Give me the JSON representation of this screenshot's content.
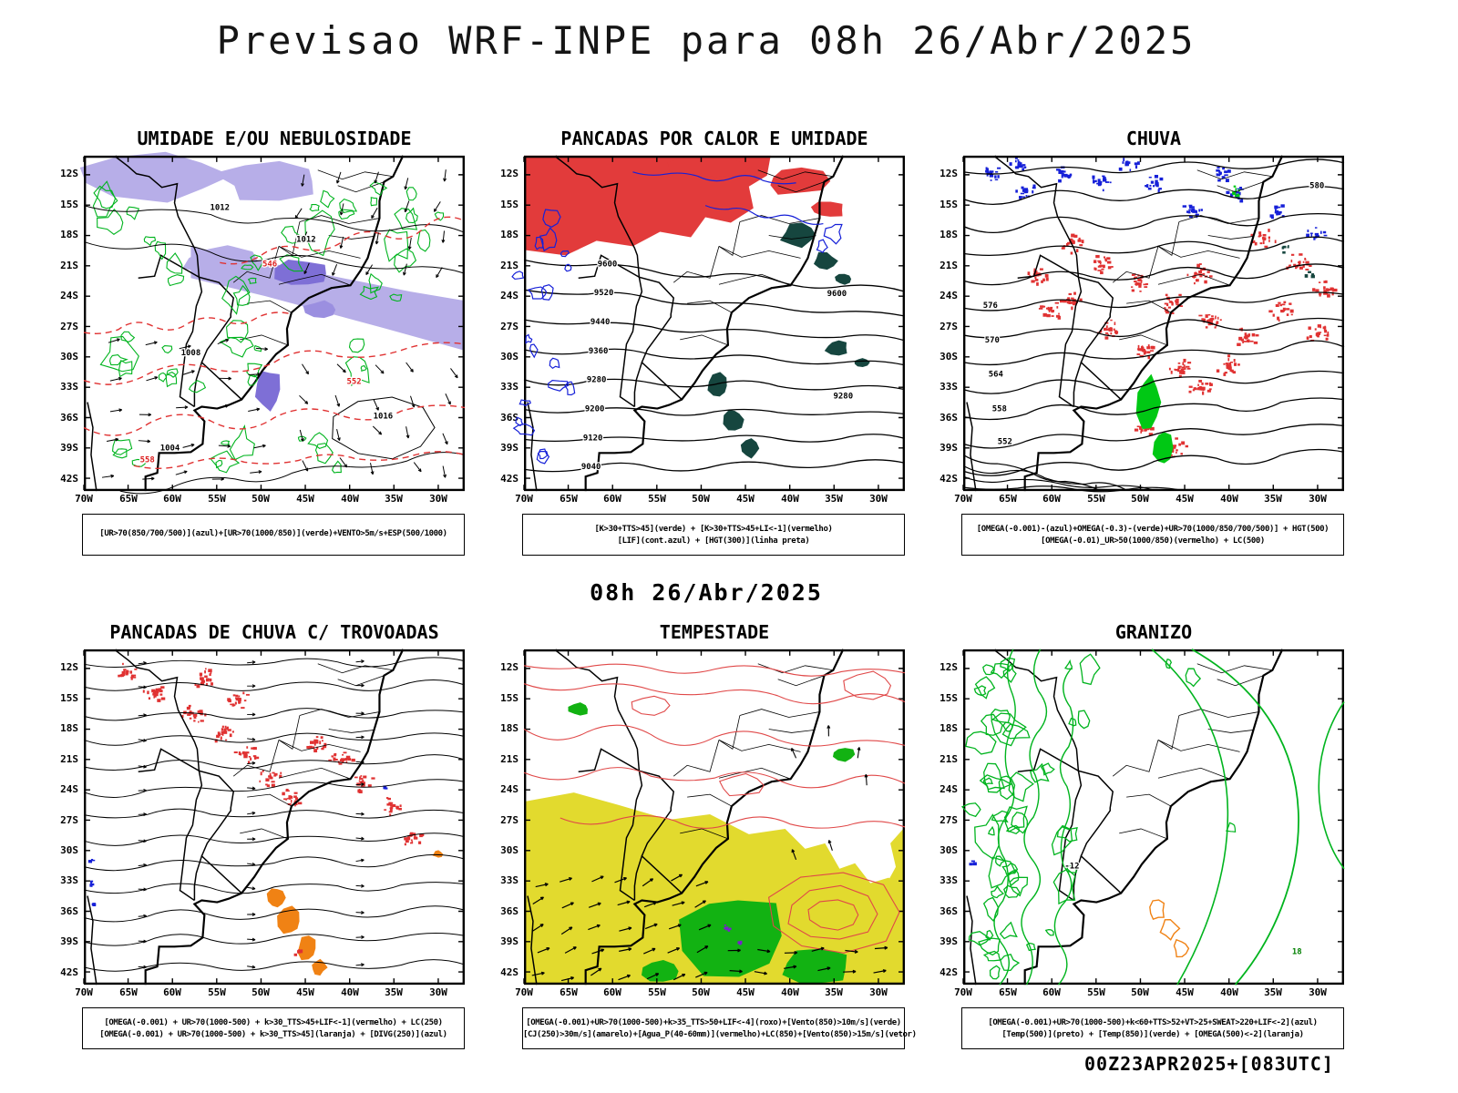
{
  "page_title": "Previsao WRF-INPE  para 08h 26/Abr/2025",
  "subtitle": "08h 26/Abr/2025",
  "footer_note": "00Z23APR2025+[083UTC]",
  "axes": {
    "lat_ticks": [
      "12S",
      "15S",
      "18S",
      "21S",
      "24S",
      "27S",
      "30S",
      "33S",
      "36S",
      "39S",
      "42S"
    ],
    "lon_ticks": [
      "70W",
      "65W",
      "60W",
      "55W",
      "50W",
      "45W",
      "40W",
      "35W",
      "30W"
    ]
  },
  "legend_colors": {
    "azul": "#1620d8",
    "verde": "#00b41e",
    "vermelho": "#e03232",
    "laranja": "#f08214",
    "amarelo": "#e2da2e",
    "roxo": "#7a1fd0",
    "preto": "#000000"
  },
  "panels": [
    {
      "title": "UMIDADE E/OU NEBULOSIDADE",
      "caption_lines": [
        "[UR>70(850/700/500)](azul)+[UR>70(1000/850)](verde)+VENTO>5m/s+ESP(500/1000)"
      ],
      "contour_labels": [
        {
          "text": "1012",
          "color": "#000000"
        },
        {
          "text": "1012",
          "color": "#000000"
        },
        {
          "text": "1016",
          "color": "#000000"
        },
        {
          "text": "1008",
          "color": "#000000"
        },
        {
          "text": "1004",
          "color": "#000000"
        },
        {
          "text": "552",
          "color": "#dc2020"
        },
        {
          "text": "558",
          "color": "#dc2020"
        },
        {
          "text": "546",
          "color": "#dc2020"
        }
      ]
    },
    {
      "title": "PANCADAS POR CALOR E UMIDADE",
      "caption_lines": [
        "[K>30+TTS>45](verde) + [K>30+TTS>45+LI<-1](vermelho)",
        "[LIF](cont.azul) + [HGT(300)](linha preta)"
      ],
      "contour_labels": [
        {
          "text": "9600",
          "color": "#000000"
        },
        {
          "text": "9520",
          "color": "#000000"
        },
        {
          "text": "9440",
          "color": "#000000"
        },
        {
          "text": "9360",
          "color": "#000000"
        },
        {
          "text": "9280",
          "color": "#000000"
        },
        {
          "text": "9200",
          "color": "#000000"
        },
        {
          "text": "9120",
          "color": "#000000"
        },
        {
          "text": "9040",
          "color": "#000000"
        },
        {
          "text": "9600",
          "color": "#000000"
        },
        {
          "text": "9280",
          "color": "#000000"
        }
      ]
    },
    {
      "title": "CHUVA",
      "caption_lines": [
        "[OMEGA(-0.001)-(azul)+OMEGA(-0.3)-(verde)+UR>70(1000/850/700/500)] + HGT(500)",
        "[OMEGA(-0.01)_UR>50(1000/850)(vermelho) + LC(500)"
      ],
      "contour_labels": [
        {
          "text": "576",
          "color": "#000000"
        },
        {
          "text": "570",
          "color": "#000000"
        },
        {
          "text": "564",
          "color": "#000000"
        },
        {
          "text": "558",
          "color": "#000000"
        },
        {
          "text": "552",
          "color": "#000000"
        },
        {
          "text": "580",
          "color": "#000000"
        }
      ]
    },
    {
      "title": "PANCADAS DE CHUVA C/ TROVOADAS",
      "caption_lines": [
        "[OMEGA(-0.001) + UR>70(1000-500) + k>30_TTS>45+LIF<-1](vermelho) + LC(250)",
        "[OMEGA(-0.001) + UR>70(1000-500) + k>30_TTS>45](laranja) + [DIVG(250)](azul)"
      ],
      "contour_labels": []
    },
    {
      "title": "TEMPESTADE",
      "caption_lines": [
        "[OMEGA(-0.001)+UR>70(1000-500)+k>35_TTS>50+LIF<-4](roxo)+[Vento(850)>10m/s](verde)",
        "[CJ(250)>30m/s](amarelo)+[Agua_P(40-60mm)](vermelho)+LC(850)+[Vento(850)>15m/s](vetor)"
      ],
      "contour_labels": []
    },
    {
      "title": "GRANIZO",
      "caption_lines": [
        "[OMEGA(-0.001)+UR>70(1000-500)+k<60+TTS>52+VT>25+SWEAT>220+LIF<-2](azul)",
        "[Temp(500)](preto) + [Temp(850)](verde) + [OMEGA(500)<-2](laranja)"
      ],
      "contour_labels": [
        {
          "text": "-12",
          "color": "#000000"
        },
        {
          "text": "18",
          "color": "#008000"
        }
      ]
    }
  ]
}
